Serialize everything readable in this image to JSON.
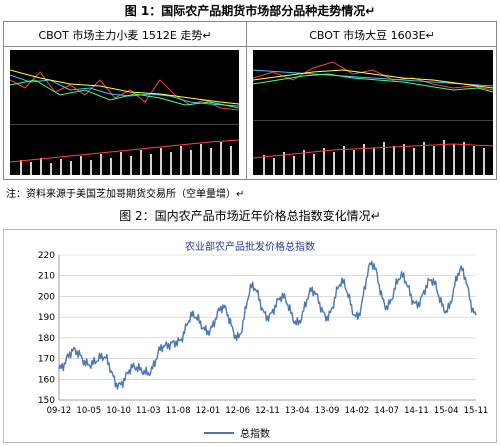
{
  "figure1": {
    "caption": "图 1：国际农产品期货市场部分品种走势情况↵",
    "left_title": "CBOT 市场主力小麦 1512E 走势↵",
    "right_title": "CBOT 市场大豆 1603E↵"
  },
  "note": "注：资料来源于美国芝加哥期货交易所（空单量增）↵",
  "figure2": {
    "caption": "图 2：国内农产品市场近年价格总指数变化情况↵"
  },
  "chart_data": {
    "type": "line",
    "title": "农业部农产品批发价格总指数",
    "xlabel": "",
    "ylabel": "",
    "ylim": [
      150,
      220
    ],
    "yticks": [
      150,
      160,
      170,
      180,
      190,
      200,
      210,
      220
    ],
    "xticks": [
      "09-12",
      "10-05",
      "10-10",
      "11-03",
      "11-08",
      "12-01",
      "12-06",
      "12-11",
      "13-04",
      "13-09",
      "14-02",
      "14-07",
      "14-11",
      "15-04",
      "15-11"
    ],
    "series": [
      {
        "name": "总指数",
        "color": "#4a78b5",
        "x": [
          0,
          0.5,
          1,
          1.5,
          2,
          2.5,
          3,
          3.5,
          4,
          4.5,
          5,
          5.5,
          6,
          6.5,
          7,
          7.5,
          8,
          8.5,
          9,
          9.5,
          10,
          10.5,
          11,
          11.5,
          12,
          12.5,
          13,
          13.5,
          14
        ],
        "values": [
          165,
          174,
          167,
          171,
          157,
          166,
          163,
          176,
          178,
          191,
          183,
          195,
          180,
          205,
          190,
          200,
          187,
          203,
          190,
          207,
          190,
          216,
          195,
          210,
          196,
          208,
          193,
          213,
          191
        ]
      }
    ]
  },
  "colors": {
    "chart_line": "#4a78b5",
    "grid": "#c8c8c8",
    "title_color": "#1f3c99"
  }
}
